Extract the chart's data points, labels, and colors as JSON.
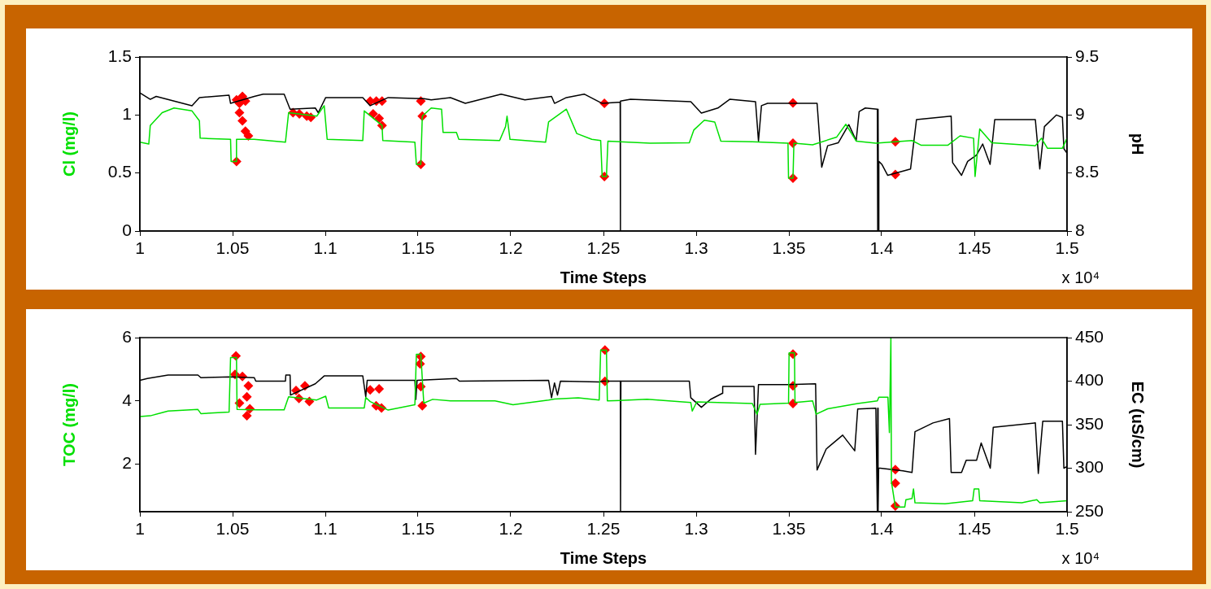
{
  "chart_data": [
    {
      "type": "line",
      "xlabel": "Time Steps",
      "ylabel": "Cl (mg/l)",
      "y2label": "pH",
      "xlim": [
        1,
        1.5
      ],
      "xticks": [
        1,
        1.05,
        1.1,
        1.15,
        1.2,
        1.25,
        1.3,
        1.35,
        1.4,
        1.45,
        1.5
      ],
      "ylim": [
        0,
        1.5
      ],
      "yticks": [
        0,
        0.5,
        1,
        1.5
      ],
      "y2lim": [
        8,
        9.5
      ],
      "y2ticks": [
        8,
        8.5,
        9,
        9.5
      ],
      "annotations": [
        "x 10⁴"
      ],
      "grid": false,
      "legend": false,
      "marker": "none",
      "series": [
        {
          "color": "#00e000",
          "x": [
            1,
            1.0048,
            1.0056,
            1.012,
            1.0184,
            1.0281,
            1.0321,
            1.0325,
            1.0489,
            1.0492,
            1.0518,
            1.0521,
            1.0617,
            1.0785,
            1.0802,
            1.0954,
            1.0994,
            1.101,
            1.1202,
            1.121,
            1.1306,
            1.131,
            1.1483,
            1.1491,
            1.1515,
            1.1523,
            1.1571,
            1.1627,
            1.1635,
            1.1707,
            1.172,
            1.194,
            1.1972,
            1.198,
            1.1996,
            1.2188,
            1.2204,
            1.23,
            1.2356,
            1.2437,
            1.2485,
            1.2493,
            1.2516,
            1.2524,
            1.2752,
            1.2963,
            1.2987,
            1.3044,
            1.31,
            1.3133,
            1.3303,
            1.3495,
            1.3498,
            1.3522,
            1.3527,
            1.3628,
            1.3758,
            1.3807,
            1.3863,
            1.3969,
            1.4164,
            1.4212,
            1.4358,
            1.4423,
            1.4496,
            1.4504,
            1.4529,
            1.4594,
            1.4829,
            1.4862,
            1.4894,
            1.4975,
            1.5
          ],
          "values": [
            0.765,
            0.75,
            0.91,
            1.02,
            1.06,
            1.035,
            0.95,
            0.8,
            0.79,
            0.6,
            0.6,
            0.79,
            0.79,
            0.765,
            1.02,
            0.99,
            1.08,
            0.79,
            0.78,
            1.035,
            0.91,
            0.78,
            0.765,
            0.575,
            0.575,
            0.99,
            1.06,
            1.05,
            0.85,
            0.85,
            0.79,
            0.78,
            0.9,
            0.99,
            0.79,
            0.765,
            0.94,
            1.05,
            0.84,
            0.79,
            0.78,
            0.47,
            0.47,
            0.775,
            0.757,
            0.76,
            0.87,
            0.955,
            0.94,
            0.775,
            0.77,
            0.757,
            0.455,
            0.455,
            0.757,
            0.743,
            0.81,
            0.92,
            0.775,
            0.757,
            0.78,
            0.74,
            0.74,
            0.82,
            0.8,
            0.47,
            0.88,
            0.76,
            0.735,
            0.8,
            0.714,
            0.714,
            0.8
          ]
        },
        {
          "color": "#000000",
          "axis": "y2",
          "x": [
            1,
            1.0056,
            1.0088,
            1.0281,
            1.0321,
            1.0481,
            1.0489,
            1.0617,
            1.0665,
            1.0778,
            1.081,
            1.0946,
            1.0962,
            1.1002,
            1.1202,
            1.1242,
            1.1339,
            1.1531,
            1.1571,
            1.1675,
            1.1755,
            1.1948,
            1.2076,
            1.222,
            1.2236,
            1.23,
            1.2396,
            1.2493,
            1.258,
            1.259,
            1.2591,
            1.2592,
            1.2646,
            1.2971,
            1.3028,
            1.3117,
            1.3182,
            1.332,
            1.3336,
            1.3352,
            1.3385,
            1.3652,
            1.3677,
            1.3709,
            1.3766,
            1.3823,
            1.3863,
            1.3879,
            1.3912,
            1.3977,
            1.3979,
            1.3981,
            1.3983,
            1.3985,
            1.4001,
            1.4033,
            1.4156,
            1.4188,
            1.4375,
            1.4383,
            1.4431,
            1.4464,
            1.4512,
            1.4545,
            1.4585,
            1.461,
            1.4829,
            1.4853,
            1.4878,
            1.4943,
            1.4975,
            1.4983,
            1.5
          ],
          "values": [
            9.19,
            9.135,
            9.16,
            9.08,
            9.15,
            9.17,
            9.1,
            9.16,
            9.18,
            9.18,
            9.05,
            9.06,
            9.02,
            9.15,
            9.15,
            9.08,
            9.15,
            9.14,
            9.13,
            9.15,
            9.1,
            9.18,
            9.13,
            9.16,
            9.1,
            9.15,
            9.18,
            9.1,
            9.11,
            9.11,
            8,
            9.12,
            9.135,
            9.115,
            9.016,
            9.06,
            9.136,
            9.115,
            8.775,
            9.08,
            9.1,
            9.1,
            8.55,
            8.735,
            8.76,
            8.917,
            8.78,
            9.03,
            9.06,
            9.05,
            8,
            9.05,
            8,
            8.6,
            8.575,
            8.48,
            8.535,
            8.96,
            8.99,
            8.59,
            8.48,
            8.6,
            8.655,
            8.75,
            8.575,
            8.96,
            8.96,
            8.535,
            8.9,
            9,
            8.98,
            8.71,
            8.67
          ]
        },
        {
          "type": "scatter",
          "marker": "diamond",
          "color": "#ff0000",
          "x": [
            1.0521,
            1.0553,
            1.0569,
            1.0537,
            1.0537,
            1.0553,
            1.0569,
            1.0585,
            1.0521,
            1.0826,
            1.086,
            1.09,
            1.0922,
            1.1242,
            1.1275,
            1.1306,
            1.1258,
            1.129,
            1.1306,
            1.1515,
            1.1523,
            1.1515,
            1.2505,
            1.2505,
            1.3522,
            1.3522,
            1.3522,
            1.4074,
            1.4074
          ],
          "values": [
            1.13,
            1.16,
            1.12,
            1.1,
            1.02,
            0.95,
            0.86,
            0.82,
            0.6,
            1.02,
            1.01,
            0.99,
            0.98,
            1.12,
            1.12,
            1.12,
            1.01,
            0.97,
            0.91,
            1.12,
            0.99,
            0.575,
            1.1,
            0.47,
            1.104,
            0.757,
            0.455,
            0.77,
            0.487
          ]
        }
      ]
    },
    {
      "type": "line",
      "xlabel": "Time Steps",
      "ylabel": "TOC (mg/l)",
      "y2label": "EC (uS/cm)",
      "xlim": [
        1,
        1.5
      ],
      "xticks": [
        1,
        1.05,
        1.1,
        1.15,
        1.2,
        1.25,
        1.3,
        1.35,
        1.4,
        1.45,
        1.5
      ],
      "ylim": [
        0.5,
        6
      ],
      "yticks": [
        2,
        4,
        6
      ],
      "y2lim": [
        250,
        450
      ],
      "y2ticks": [
        250,
        300,
        350,
        400,
        450
      ],
      "annotations": [
        "x 10⁴"
      ],
      "grid": false,
      "legend": false,
      "marker": "none",
      "series": [
        {
          "color": "#00e000",
          "x": [
            1,
            1.0056,
            1.0152,
            1.0313,
            1.0329,
            1.0481,
            1.0489,
            1.0521,
            1.0524,
            1.0633,
            1.0778,
            1.0802,
            1.0954,
            1.1002,
            1.1018,
            1.121,
            1.1218,
            1.1242,
            1.1339,
            1.1483,
            1.1491,
            1.1515,
            1.1531,
            1.1579,
            1.1675,
            1.1915,
            1.2012,
            1.2204,
            1.2236,
            1.2364,
            1.2477,
            1.2485,
            1.2516,
            1.2521,
            1.2735,
            1.2971,
            1.2979,
            1.3003,
            1.3303,
            1.3328,
            1.3344,
            1.3498,
            1.3501,
            1.353,
            1.3533,
            1.3628,
            1.3647,
            1.3709,
            1.3871,
            1.3977,
            1.3985,
            1.4034,
            1.4042,
            1.405,
            1.4053,
            1.4074,
            1.4125,
            1.4131,
            1.4164,
            1.4172,
            1.418,
            1.4342,
            1.4491,
            1.4499,
            1.4524,
            1.4529,
            1.4756,
            1.4837,
            1.4853,
            1.5
          ],
          "values": [
            3.51,
            3.53,
            3.68,
            3.73,
            3.6,
            3.65,
            5.37,
            5.37,
            3.73,
            3.72,
            3.72,
            4.13,
            4.03,
            4.15,
            3.78,
            3.78,
            4.11,
            3.98,
            3.71,
            3.88,
            5.47,
            5.47,
            3.93,
            4.05,
            4,
            4,
            3.88,
            4.03,
            4.06,
            4.1,
            4.03,
            5.61,
            5.6,
            4,
            4.05,
            3.95,
            3.68,
            3.97,
            3.92,
            3.58,
            3.89,
            3.93,
            5.52,
            5.52,
            3.95,
            4,
            3.58,
            3.75,
            3.92,
            4,
            4.12,
            4.12,
            3,
            6,
            1.45,
            0.65,
            0.65,
            0.88,
            0.92,
            1.22,
            0.78,
            0.75,
            0.85,
            1.22,
            1.22,
            0.85,
            0.78,
            0.88,
            0.78,
            0.85
          ]
        },
        {
          "color": "#000000",
          "axis": "y2",
          "x": [
            1,
            1.004,
            1.0152,
            1.0313,
            1.0329,
            1.0489,
            1.0617,
            1.0625,
            1.0785,
            1.0787,
            1.081,
            1.0812,
            1.0946,
            1.0994,
            1.1202,
            1.1218,
            1.1226,
            1.1339,
            1.1483,
            1.1488,
            1.1495,
            1.1707,
            1.1723,
            1.2204,
            1.222,
            1.2236,
            1.2252,
            1.2268,
            1.2477,
            1.25,
            1.2591,
            1.2592,
            1.2594,
            1.2963,
            1.2971,
            1.3028,
            1.3077,
            1.3141,
            1.3143,
            1.3312,
            1.332,
            1.3336,
            1.3498,
            1.3644,
            1.3652,
            1.3701,
            1.379,
            1.3855,
            1.3871,
            1.3969,
            1.3977,
            1.3979,
            1.3981,
            1.3984,
            1.3993,
            1.4115,
            1.4164,
            1.418,
            1.4277,
            1.4366,
            1.4375,
            1.4431,
            1.4456,
            1.4512,
            1.4537,
            1.4586,
            1.4602,
            1.4829,
            1.4845,
            1.4869,
            1.4975,
            1.4983,
            1.5
          ],
          "values": [
            401,
            403,
            407,
            407,
            404,
            405,
            404,
            400,
            400,
            407,
            407,
            384,
            397,
            406,
            406,
            382,
            401,
            401,
            401,
            379,
            401,
            403,
            400,
            401,
            381,
            398,
            384,
            400,
            399,
            400,
            400,
            250,
            400,
            400,
            381,
            370,
            379,
            386,
            394,
            394,
            316,
            396,
            396,
            397,
            298,
            322,
            338,
            320,
            368,
            369,
            250,
            369,
            250,
            300,
            300,
            297,
            295,
            342,
            352,
            357,
            295,
            295,
            309,
            309,
            329,
            300,
            347,
            352,
            294,
            354,
            354,
            300,
            302
          ]
        },
        {
          "type": "scatter",
          "marker": "diamond",
          "color": "#ff0000",
          "x": [
            1.0518,
            1.0513,
            1.0553,
            1.0585,
            1.0577,
            1.0537,
            1.0593,
            1.0577,
            1.0842,
            1.089,
            1.0914,
            1.0858,
            1.1242,
            1.129,
            1.1274,
            1.1303,
            1.1515,
            1.1511,
            1.1515,
            1.1523,
            1.2508,
            1.2508,
            1.3522,
            1.3522,
            1.3522,
            1.4074,
            1.4074,
            1.4074
          ],
          "values": [
            5.42,
            4.84,
            4.77,
            4.48,
            4.13,
            3.93,
            3.75,
            3.53,
            4.33,
            4.48,
            3.98,
            4.08,
            4.35,
            4.38,
            3.85,
            3.78,
            5.4,
            5.17,
            4.45,
            3.85,
            5.61,
            4.62,
            5.48,
            4.48,
            3.92,
            1.83,
            1.4,
            0.68
          ]
        }
      ]
    }
  ]
}
